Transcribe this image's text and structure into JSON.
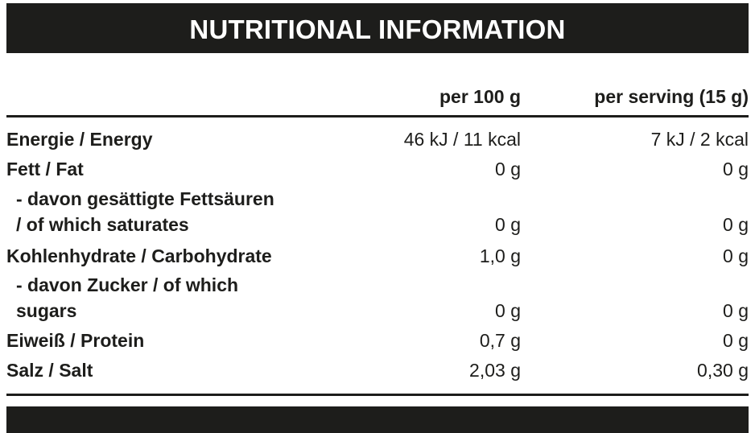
{
  "header": {
    "title": "NUTRITIONAL INFORMATION"
  },
  "columns": {
    "per_100g": "per 100 g",
    "per_serving": "per serving (15 g)"
  },
  "rows": [
    {
      "label_lines": [
        "Energie / Energy"
      ],
      "per_100g": "46 kJ / 11 kcal",
      "per_serving": "7 kJ / 2 kcal"
    },
    {
      "label_lines": [
        "Fett / Fat"
      ],
      "per_100g": "0 g",
      "per_serving": "0 g"
    },
    {
      "label_lines": [
        "- davon gesättigte Fettsäuren",
        "/ of which saturates"
      ],
      "per_100g": "0 g",
      "per_serving": "0 g"
    },
    {
      "label_lines": [
        "Kohlenhydrate / Carbohydrate"
      ],
      "per_100g": "1,0 g",
      "per_serving": "0 g"
    },
    {
      "label_lines": [
        "- davon Zucker / of which",
        "sugars"
      ],
      "per_100g": "0 g",
      "per_serving": "0 g"
    },
    {
      "label_lines": [
        "Eiweiß / Protein"
      ],
      "per_100g": "0,7 g",
      "per_serving": "0 g"
    },
    {
      "label_lines": [
        "Salz / Salt"
      ],
      "per_100g": "2,03 g",
      "per_serving": "0,30 g"
    }
  ]
}
